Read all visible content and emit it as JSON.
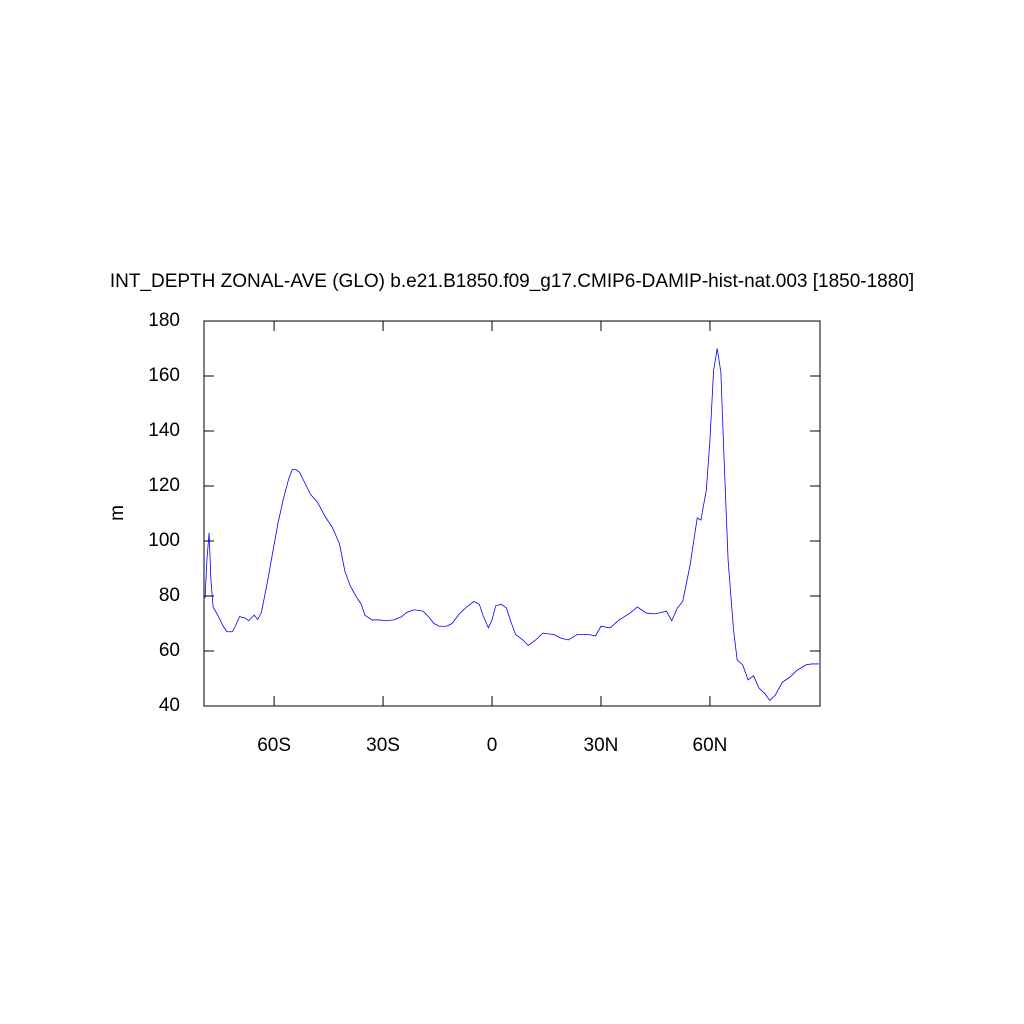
{
  "chart_data": {
    "type": "line",
    "title": "INT_DEPTH ZONAL-AVE (GLO) b.e21.B1850.f09_g17.CMIP6-DAMIP-hist-nat.003 [1850-1880]",
    "ylabel": "m",
    "x": [
      -79,
      -78.5,
      -77.9,
      -77.4,
      -76.8,
      -75.5,
      -74,
      -73,
      -71.5,
      -70.5,
      -69.5,
      -68,
      -67,
      -65.5,
      -64.5,
      -63.5,
      -62,
      -60.5,
      -59,
      -57.5,
      -56,
      -55,
      -54,
      -53,
      -51.5,
      -50,
      -48,
      -46,
      -44,
      -42,
      -40.5,
      -39,
      -37.5,
      -36,
      -35,
      -33,
      -31,
      -29,
      -27,
      -25,
      -23.5,
      -21.5,
      -19,
      -17.5,
      -16,
      -14.5,
      -12.5,
      -11,
      -9,
      -7,
      -5,
      -3.5,
      -2.5,
      -1,
      0,
      1,
      2.5,
      4,
      5,
      6.5,
      8.5,
      10,
      12,
      14,
      17,
      19,
      21,
      23.5,
      26.5,
      28.5,
      30,
      32.5,
      35,
      38,
      40,
      42.5,
      45,
      48,
      49.5,
      51,
      52.5,
      54.5,
      56.5,
      57.5,
      59,
      60,
      61,
      62,
      63,
      64,
      65,
      66.5,
      67.5,
      69,
      70.5,
      72,
      73.5,
      75,
      76.5,
      78,
      80,
      82,
      84,
      86.5,
      88,
      90
    ],
    "series": [
      {
        "name": "INT_DEPTH",
        "color": "#0000ff",
        "values": [
          79.3,
          93,
          103,
          86,
          76,
          73,
          69,
          67,
          67,
          69.5,
          72.5,
          72,
          71,
          73,
          71.5,
          74,
          84,
          95,
          106,
          115,
          122.5,
          126,
          126,
          125,
          121,
          117,
          114,
          109,
          105,
          99,
          89,
          83.6,
          80,
          77,
          73,
          71.3,
          71.3,
          71,
          71.3,
          72.4,
          74,
          75,
          74.5,
          72.5,
          70,
          69,
          69,
          70,
          73.5,
          76,
          78,
          77,
          73,
          68.4,
          71.3,
          76.4,
          77,
          75.6,
          71.3,
          66,
          64,
          62,
          64,
          66.5,
          66,
          64.7,
          64,
          66,
          66,
          65.5,
          69,
          68.4,
          71.3,
          73.8,
          76,
          73.8,
          73.5,
          74.5,
          71,
          75.6,
          78,
          91,
          108.4,
          107.6,
          118.5,
          136.7,
          162,
          170,
          161.5,
          126,
          93,
          67.6,
          56.7,
          55,
          49.5,
          51,
          46.5,
          44.7,
          42,
          44,
          48.7,
          50.5,
          53,
          55,
          55.3,
          55.3
        ]
      }
    ],
    "xlim": [
      -79.3,
      90.3
    ],
    "ylim": [
      40,
      180
    ],
    "xticks": [
      {
        "value": -60,
        "label": "60S"
      },
      {
        "value": -30,
        "label": "30S"
      },
      0,
      {
        "value": 30,
        "label": "30N"
      },
      {
        "value": 60,
        "label": "60N"
      }
    ],
    "yticks": [
      40,
      60,
      80,
      100,
      120,
      140,
      160,
      180
    ]
  }
}
